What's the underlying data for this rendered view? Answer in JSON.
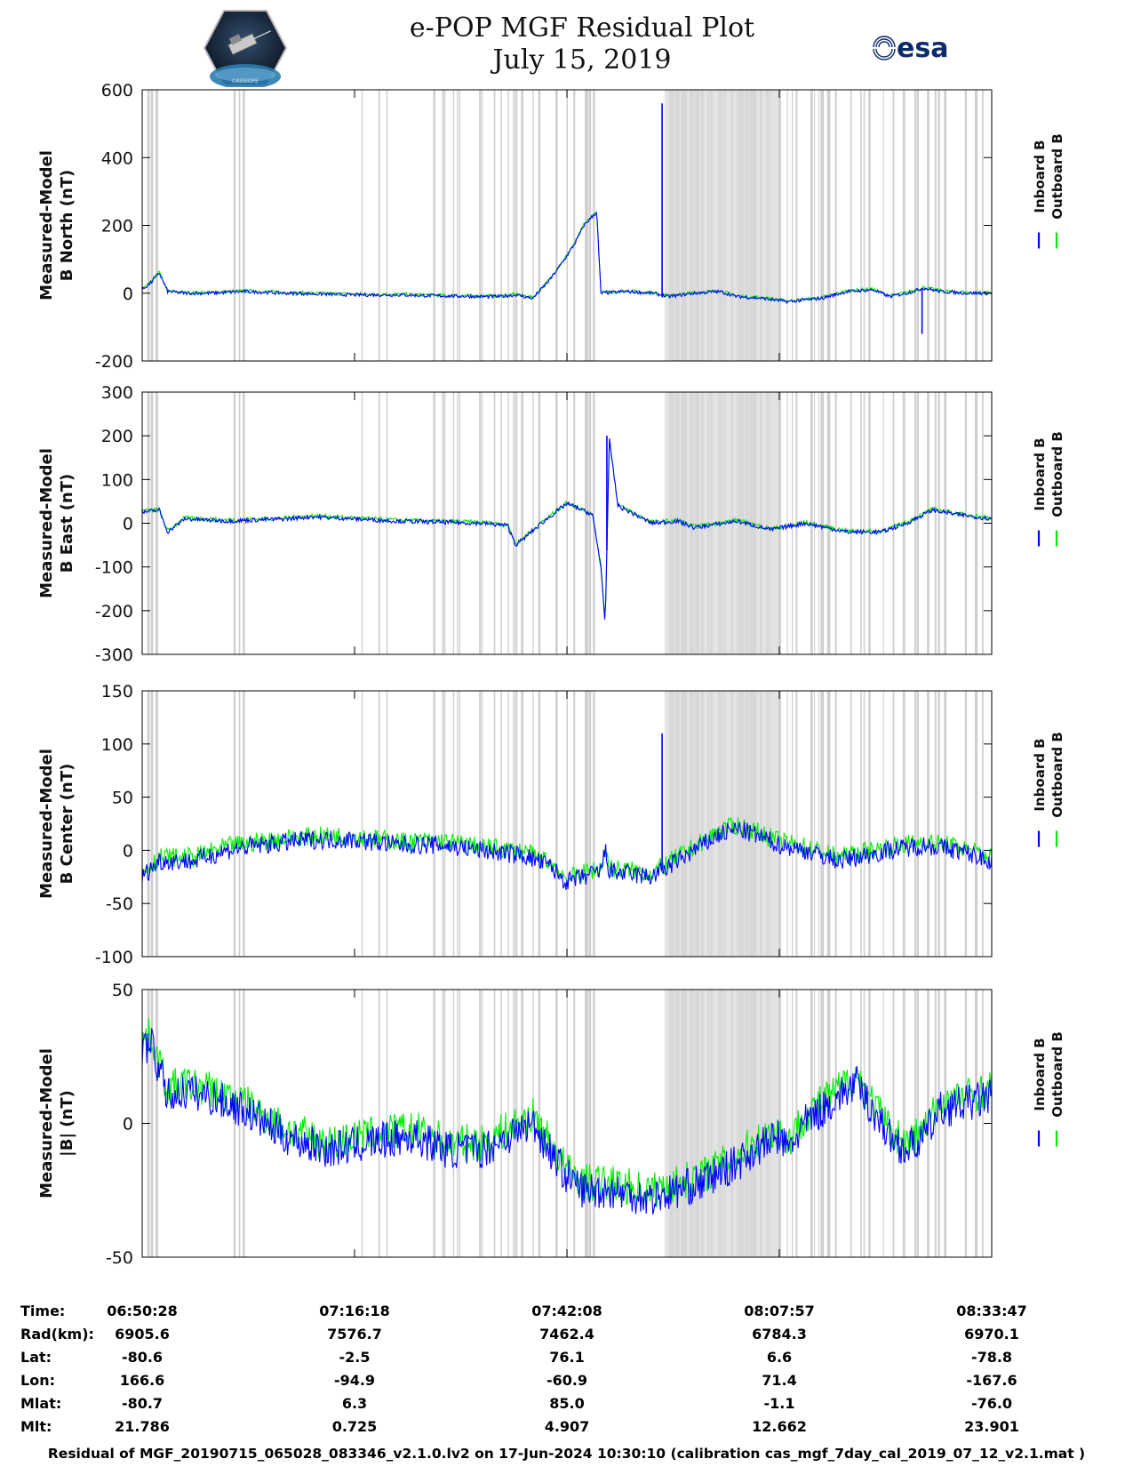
{
  "header": {
    "title_line1": "e-POP MGF Residual Plot",
    "title_line2": "July 15, 2019",
    "logo_left": "CASSIOPE",
    "logo_right": "esa"
  },
  "chart_data": [
    {
      "type": "line",
      "ylabel": [
        "Measured-Model",
        "B North (nT)"
      ],
      "ylim": [
        -200,
        600
      ],
      "yticks": [
        600,
        400,
        200,
        0,
        -200
      ],
      "legend": [
        "Inboard B",
        "Outboard B"
      ],
      "series": [
        {
          "name": "Inboard B",
          "color": "#0000ff"
        },
        {
          "name": "Outboard B",
          "color": "#00ee00"
        }
      ],
      "x_fraction": [
        0,
        0.01,
        0.02,
        0.03,
        0.05,
        0.08,
        0.12,
        0.17,
        0.25,
        0.3,
        0.35,
        0.4,
        0.42,
        0.44,
        0.46,
        0.48,
        0.5,
        0.51,
        0.52,
        0.535,
        0.54,
        0.57,
        0.6,
        0.62,
        0.65,
        0.68,
        0.7,
        0.73,
        0.76,
        0.8,
        0.83,
        0.86,
        0.88,
        0.9,
        0.92,
        0.94,
        0.97,
        1
      ],
      "values": [
        10,
        30,
        60,
        5,
        0,
        0,
        5,
        0,
        -5,
        -5,
        -8,
        -10,
        -10,
        -5,
        -15,
        40,
        110,
        150,
        200,
        240,
        0,
        5,
        0,
        -10,
        0,
        5,
        -10,
        -15,
        -25,
        -15,
        5,
        10,
        -10,
        0,
        15,
        5,
        0,
        0
      ],
      "spikes": [
        {
          "x_fraction": 0.612,
          "value": 560
        },
        {
          "x_fraction": 0.918,
          "value": -120
        }
      ]
    },
    {
      "type": "line",
      "ylabel": [
        "Measured-Model",
        "B East (nT)"
      ],
      "ylim": [
        -300,
        300
      ],
      "yticks": [
        300,
        200,
        100,
        0,
        -100,
        -200,
        -300
      ],
      "legend": [
        "Inboard B",
        "Outboard B"
      ],
      "series": [
        {
          "name": "Inboard B",
          "color": "#0000ff"
        },
        {
          "name": "Outboard B",
          "color": "#00ee00"
        }
      ],
      "x_fraction": [
        0,
        0.02,
        0.03,
        0.05,
        0.1,
        0.17,
        0.2,
        0.3,
        0.4,
        0.43,
        0.44,
        0.47,
        0.5,
        0.53,
        0.54,
        0.545,
        0.55,
        0.56,
        0.6,
        0.63,
        0.65,
        0.7,
        0.74,
        0.78,
        0.83,
        0.87,
        0.9,
        0.93,
        0.96,
        1
      ],
      "values": [
        25,
        30,
        -20,
        10,
        5,
        10,
        15,
        5,
        0,
        -5,
        -50,
        0,
        45,
        20,
        -100,
        -230,
        190,
        40,
        0,
        5,
        -10,
        5,
        -15,
        0,
        -20,
        -20,
        0,
        30,
        20,
        10
      ],
      "spikes": [
        {
          "x_fraction": 0.545,
          "value": -230
        },
        {
          "x_fraction": 0.547,
          "value": 200
        }
      ]
    },
    {
      "type": "line",
      "ylabel": [
        "Measured-Model",
        "B Center (nT)"
      ],
      "ylim": [
        -100,
        150
      ],
      "yticks": [
        150,
        100,
        50,
        0,
        -50,
        -100
      ],
      "legend": [
        "Inboard B",
        "Outboard B"
      ],
      "series": [
        {
          "name": "Inboard B",
          "color": "#0000ff"
        },
        {
          "name": "Outboard B",
          "color": "#00ee00"
        }
      ],
      "x_fraction": [
        0,
        0.02,
        0.03,
        0.06,
        0.1,
        0.14,
        0.2,
        0.25,
        0.3,
        0.35,
        0.4,
        0.45,
        0.48,
        0.5,
        0.54,
        0.545,
        0.55,
        0.6,
        0.63,
        0.65,
        0.68,
        0.7,
        0.72,
        0.75,
        0.78,
        0.82,
        0.85,
        0.88,
        0.92,
        0.96,
        1
      ],
      "values": [
        -25,
        -10,
        -10,
        -10,
        0,
        5,
        10,
        10,
        5,
        5,
        0,
        -5,
        -15,
        -30,
        -20,
        0,
        -20,
        -25,
        -10,
        0,
        15,
        20,
        15,
        5,
        0,
        -10,
        -5,
        0,
        5,
        0,
        -10
      ],
      "noise": 9,
      "spikes": [
        {
          "x_fraction": 0.612,
          "value": 110
        }
      ]
    },
    {
      "type": "line",
      "ylabel": [
        "Measured-Model",
        "|B| (nT)"
      ],
      "ylim": [
        -50,
        50
      ],
      "yticks": [
        50,
        0,
        -50
      ],
      "legend": [
        "Inboard B",
        "Outboard B"
      ],
      "series": [
        {
          "name": "Inboard B",
          "color": "#0000ff"
        },
        {
          "name": "Outboard B",
          "color": "#00ee00"
        }
      ],
      "x_fraction": [
        0,
        0.01,
        0.02,
        0.03,
        0.05,
        0.08,
        0.12,
        0.17,
        0.22,
        0.27,
        0.32,
        0.36,
        0.4,
        0.43,
        0.46,
        0.48,
        0.5,
        0.52,
        0.55,
        0.6,
        0.63,
        0.66,
        0.7,
        0.72,
        0.75,
        0.76,
        0.78,
        0.8,
        0.82,
        0.84,
        0.86,
        0.88,
        0.9,
        0.92,
        0.94,
        1
      ],
      "values": [
        28,
        30,
        20,
        10,
        12,
        10,
        5,
        -5,
        -10,
        -7,
        -5,
        -10,
        -10,
        -5,
        0,
        -10,
        -20,
        -25,
        -25,
        -28,
        -25,
        -22,
        -15,
        -10,
        -5,
        -10,
        0,
        5,
        10,
        15,
        5,
        -5,
        -10,
        -5,
        5,
        10
      ],
      "noise": 7
    }
  ],
  "x_axis": {
    "tick_fraction": [
      0,
      0.25,
      0.5,
      0.75,
      1
    ],
    "gap_shading": "light gray vertical bands mark data gaps"
  },
  "orbit_table": {
    "rows": [
      {
        "label": "Time:",
        "values": [
          "06:50:28",
          "07:16:18",
          "07:42:08",
          "08:07:57",
          "08:33:47"
        ]
      },
      {
        "label": "Rad(km):",
        "values": [
          "6905.6",
          "7576.7",
          "7462.4",
          "6784.3",
          "6970.1"
        ]
      },
      {
        "label": "Lat:",
        "values": [
          "-80.6",
          "-2.5",
          "76.1",
          "6.6",
          "-78.8"
        ]
      },
      {
        "label": "Lon:",
        "values": [
          "166.6",
          "-94.9",
          "-60.9",
          "71.4",
          "-167.6"
        ]
      },
      {
        "label": "Mlat:",
        "values": [
          "-80.7",
          "6.3",
          "85.0",
          "-1.1",
          "-76.0"
        ]
      },
      {
        "label": "Mlt:",
        "values": [
          "21.786",
          "0.725",
          "4.907",
          "12.662",
          "23.901"
        ]
      }
    ]
  },
  "footer": {
    "note": "Residual of MGF_20190715_065028_083346_v2.1.0.lv2 on 17-Jun-2024 10:30:10 (calibration cas_mgf_7day_cal_2019_07_12_v2.1.mat )"
  }
}
